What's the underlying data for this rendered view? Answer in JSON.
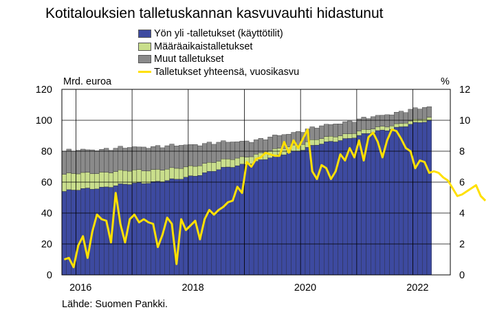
{
  "title": "Kotitalouksien talletuskannan kasvuvauhti hidastunut",
  "source": "Lähde: Suomen Pankki.",
  "colors": {
    "demand": "#3d4aa0",
    "time": "#c9de8c",
    "other": "#8a8a8a",
    "growth": "#ffe000",
    "grid": "#000000"
  },
  "chart_data": {
    "type": "bar",
    "stacked": true,
    "x_start": "2015-10",
    "x_end": "2022-04",
    "frequency": "monthly",
    "x_ticks": [
      "2016",
      "2018",
      "2020",
      "2022"
    ],
    "left_axis": {
      "label": "Mrd. euroa",
      "min": 0,
      "max": 120,
      "ticks": [
        0,
        20,
        40,
        60,
        80,
        100,
        120
      ]
    },
    "right_axis": {
      "label": "%",
      "min": 0,
      "max": 12,
      "ticks": [
        0,
        2,
        4,
        6,
        8,
        10,
        12
      ]
    },
    "grid": true,
    "legend_position": "top",
    "series": [
      {
        "name": "Yön yli -talletukset (käyttötilit)",
        "type": "bar",
        "axis": "left",
        "anchors": [
          [
            0,
            54
          ],
          [
            6,
            56
          ],
          [
            12,
            58
          ],
          [
            18,
            60
          ],
          [
            24,
            61.5
          ],
          [
            30,
            66
          ],
          [
            36,
            70
          ],
          [
            42,
            74
          ],
          [
            48,
            79
          ],
          [
            54,
            84
          ],
          [
            60,
            88
          ],
          [
            66,
            92
          ],
          [
            72,
            96
          ],
          [
            78,
            99.5
          ],
          [
            84,
            102
          ],
          [
            90,
            104
          ]
        ]
      },
      {
        "name": "Määräaikaistalletukset",
        "type": "bar",
        "axis": "left",
        "anchors": [
          [
            0,
            11
          ],
          [
            6,
            10
          ],
          [
            12,
            9
          ],
          [
            18,
            8
          ],
          [
            24,
            7
          ],
          [
            30,
            6
          ],
          [
            36,
            5
          ],
          [
            42,
            4.5
          ],
          [
            48,
            4
          ],
          [
            54,
            3.5
          ],
          [
            60,
            3
          ],
          [
            66,
            2.5
          ],
          [
            72,
            2.2
          ],
          [
            78,
            2
          ],
          [
            84,
            2
          ],
          [
            90,
            2
          ]
        ]
      },
      {
        "name": "Muut talletukset",
        "type": "bar",
        "axis": "left",
        "anchors": [
          [
            0,
            15
          ],
          [
            6,
            15
          ],
          [
            12,
            15
          ],
          [
            18,
            15
          ],
          [
            24,
            15
          ],
          [
            30,
            13
          ],
          [
            36,
            11
          ],
          [
            42,
            9
          ],
          [
            48,
            8.5
          ],
          [
            54,
            8
          ],
          [
            60,
            8
          ],
          [
            66,
            7.5
          ],
          [
            72,
            7.5
          ],
          [
            78,
            7
          ],
          [
            84,
            7
          ],
          [
            90,
            7
          ]
        ]
      },
      {
        "name": "Talletukset yhteensä, vuosikasvu",
        "type": "line",
        "axis": "right",
        "values": [
          1.0,
          1.1,
          0.5,
          1.9,
          2.5,
          1.1,
          2.8,
          3.9,
          3.6,
          3.5,
          2.1,
          5.3,
          3.3,
          2.1,
          3.6,
          3.9,
          3.4,
          3.6,
          3.4,
          3.3,
          1.8,
          2.6,
          3.7,
          3.3,
          0.7,
          3.6,
          2.9,
          3.2,
          3.5,
          2.3,
          3.6,
          4.2,
          3.9,
          4.2,
          4.4,
          4.7,
          4.8,
          5.7,
          5.3,
          7.3,
          7.0,
          7.5,
          7.6,
          7.9,
          7.8,
          7.7,
          7.7,
          8.6,
          7.9,
          8.7,
          8.2,
          8.8,
          9.4,
          6.7,
          6.2,
          7.1,
          6.9,
          6.2,
          6.7,
          7.8,
          7.4,
          8.2,
          7.6,
          8.7,
          7.4,
          8.9,
          9.2,
          8.6,
          7.6,
          8.7,
          9.4,
          9.3,
          8.8,
          8.2,
          8.0,
          6.9,
          7.4,
          7.3,
          6.6,
          6.7,
          6.6,
          6.3,
          6.1,
          5.6,
          5.1,
          5.2,
          5.4,
          5.6,
          5.8,
          5.1,
          4.8
        ]
      }
    ]
  }
}
